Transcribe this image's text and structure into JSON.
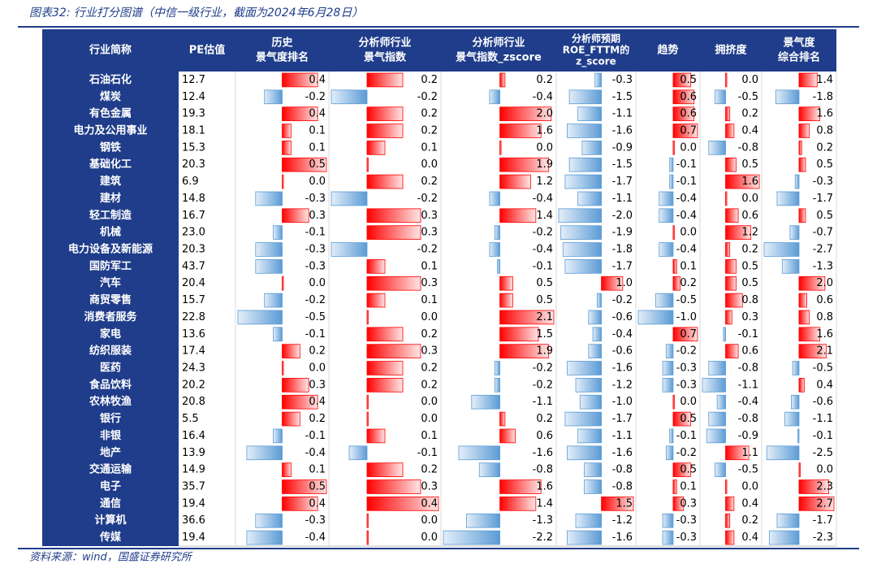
{
  "title": "图表32: 行业打分图谱（中信一级行业，截面为2024年6月28日）",
  "columns": [
    {
      "lines": [
        "行业简称"
      ]
    },
    {
      "lines": [
        "PE估值"
      ]
    },
    {
      "lines": [
        "历史",
        "景气度排名"
      ]
    },
    {
      "lines": [
        "分析师行业",
        "景气指数"
      ]
    },
    {
      "lines": [
        "分析师行业",
        "景气指数_zscore"
      ]
    },
    {
      "lines": [
        "分析师预期",
        "ROE_FTTM的",
        "z_score"
      ]
    },
    {
      "lines": [
        "趋势"
      ]
    },
    {
      "lines": [
        "拥挤度"
      ]
    },
    {
      "lines": [
        "景气度",
        "综合排名"
      ]
    }
  ],
  "rows": [
    {
      "name": "石油石化",
      "pe": "12.7",
      "values": [
        "0.4",
        "0.2",
        "0.2",
        "-0.3",
        "0.5",
        "0.0",
        "1.4"
      ]
    },
    {
      "name": "煤炭",
      "pe": "12.4",
      "values": [
        "-0.2",
        "-0.2",
        "-0.4",
        "-1.5",
        "0.6",
        "-0.5",
        "-1.8"
      ]
    },
    {
      "name": "有色金属",
      "pe": "19.3",
      "values": [
        "0.4",
        "0.2",
        "2.0",
        "-1.1",
        "0.6",
        "0.2",
        "1.6"
      ]
    },
    {
      "name": "电力及公用事业",
      "pe": "18.1",
      "values": [
        "0.1",
        "0.2",
        "1.6",
        "-1.6",
        "0.7",
        "0.4",
        "0.8"
      ]
    },
    {
      "name": "钢铁",
      "pe": "15.3",
      "values": [
        "0.1",
        "0.1",
        "0.0",
        "-0.9",
        "0.0",
        "-0.8",
        "0.2"
      ]
    },
    {
      "name": "基础化工",
      "pe": "20.3",
      "values": [
        "0.5",
        "0.0",
        "1.9",
        "-1.5",
        "-0.1",
        "0.5",
        "0.5"
      ]
    },
    {
      "name": "建筑",
      "pe": "6.9",
      "values": [
        "0.0",
        "0.2",
        "1.2",
        "-1.7",
        "-0.1",
        "1.6",
        "-0.3"
      ]
    },
    {
      "name": "建材",
      "pe": "14.8",
      "values": [
        "-0.3",
        "-0.2",
        "-0.4",
        "-1.1",
        "-0.4",
        "0.0",
        "-1.7"
      ]
    },
    {
      "name": "轻工制造",
      "pe": "16.7",
      "values": [
        "0.3",
        "0.3",
        "1.4",
        "-2.0",
        "-0.4",
        "0.6",
        "0.5"
      ]
    },
    {
      "name": "机械",
      "pe": "23.0",
      "values": [
        "-0.1",
        "0.3",
        "-0.2",
        "-1.9",
        "0.0",
        "1.2",
        "-0.7"
      ]
    },
    {
      "name": "电力设备及新能源",
      "pe": "20.3",
      "values": [
        "-0.3",
        "-0.2",
        "-0.4",
        "-1.8",
        "-0.4",
        "0.2",
        "-2.7"
      ]
    },
    {
      "name": "国防军工",
      "pe": "43.7",
      "values": [
        "-0.3",
        "0.1",
        "-0.1",
        "-1.7",
        "0.1",
        "0.5",
        "-1.3"
      ]
    },
    {
      "name": "汽车",
      "pe": "20.4",
      "values": [
        "0.0",
        "0.3",
        "0.5",
        "1.0",
        "0.2",
        "0.5",
        "2.0"
      ]
    },
    {
      "name": "商贸零售",
      "pe": "15.7",
      "values": [
        "-0.2",
        "0.1",
        "0.5",
        "-0.2",
        "-0.5",
        "0.8",
        "0.6"
      ]
    },
    {
      "name": "消费者服务",
      "pe": "22.8",
      "values": [
        "-0.5",
        "0.0",
        "2.1",
        "-0.6",
        "-1.0",
        "0.3",
        "0.8"
      ]
    },
    {
      "name": "家电",
      "pe": "13.6",
      "values": [
        "-0.1",
        "0.2",
        "1.5",
        "-0.4",
        "0.7",
        "-0.1",
        "1.6"
      ]
    },
    {
      "name": "纺织服装",
      "pe": "17.4",
      "values": [
        "0.2",
        "0.3",
        "1.9",
        "-0.6",
        "-0.2",
        "0.6",
        "2.1"
      ]
    },
    {
      "name": "医药",
      "pe": "24.3",
      "values": [
        "0.0",
        "0.2",
        "-0.2",
        "-1.6",
        "-0.3",
        "-0.8",
        "-0.5"
      ]
    },
    {
      "name": "食品饮料",
      "pe": "20.2",
      "values": [
        "0.3",
        "0.2",
        "-0.2",
        "-1.2",
        "-0.3",
        "-1.1",
        "0.4"
      ]
    },
    {
      "name": "农林牧渔",
      "pe": "20.8",
      "values": [
        "0.4",
        "0.0",
        "-1.1",
        "-1.0",
        "0.0",
        "-0.4",
        "-0.6"
      ]
    },
    {
      "name": "银行",
      "pe": "5.5",
      "values": [
        "0.2",
        "0.0",
        "0.2",
        "-1.7",
        "0.5",
        "-0.8",
        "-1.1"
      ]
    },
    {
      "name": "非银",
      "pe": "16.4",
      "values": [
        "-0.1",
        "0.1",
        "0.6",
        "-1.1",
        "-0.1",
        "-0.9",
        "-0.1"
      ]
    },
    {
      "name": "地产",
      "pe": "13.9",
      "values": [
        "-0.4",
        "-0.1",
        "-1.6",
        "-1.6",
        "-0.2",
        "1.1",
        "-2.5"
      ]
    },
    {
      "name": "交通运输",
      "pe": "14.9",
      "values": [
        "0.1",
        "0.2",
        "-0.8",
        "-0.8",
        "0.5",
        "-0.5",
        "0.0"
      ]
    },
    {
      "name": "电子",
      "pe": "35.7",
      "values": [
        "0.5",
        "0.3",
        "1.6",
        "-0.8",
        "0.1",
        "0.0",
        "2.3"
      ]
    },
    {
      "name": "通信",
      "pe": "19.4",
      "values": [
        "0.4",
        "0.4",
        "1.4",
        "1.5",
        "0.3",
        "0.4",
        "2.7"
      ]
    },
    {
      "name": "计算机",
      "pe": "36.6",
      "values": [
        "-0.3",
        "0.0",
        "-1.3",
        "-1.2",
        "-0.3",
        "0.2",
        "-1.7"
      ]
    },
    {
      "name": "传媒",
      "pe": "19.4",
      "values": [
        "-0.4",
        "0.0",
        "-2.2",
        "-1.6",
        "-0.3",
        "0.4",
        "-2.3"
      ]
    }
  ],
  "source": "资料来源：wind，国盛证券研究所"
}
